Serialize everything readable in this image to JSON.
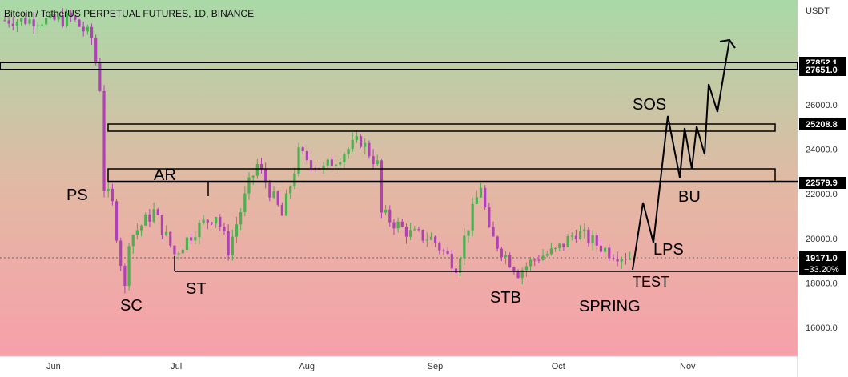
{
  "header": {
    "title": "Bitcoin / TetherUS PERPETUAL FUTURES, 1D, BINANCE",
    "currency": "USDT"
  },
  "colors": {
    "bg_top": "#a8d8a8",
    "bg_bottom": "#f4a0a8",
    "candle_up": "#4caf50",
    "candle_down": "#b040b8",
    "price_tag_bg": "#000000",
    "line": "#000000"
  },
  "annotations": {
    "ps": "PS",
    "ar": "AR",
    "sc": "SC",
    "st": "ST",
    "stb": "STB",
    "spring": "SPRING",
    "test": "TEST",
    "lps": "LPS",
    "sos": "SOS",
    "bu": "BU"
  },
  "price_tags": {
    "t1": "27852.1",
    "t2": "27651.0",
    "t3": "25208.8",
    "t4": "22579.9",
    "current": "19171.0",
    "change": "−33.20%"
  },
  "chart_data": {
    "type": "line",
    "title": "Bitcoin / TetherUS PERPETUAL FUTURES, 1D, BINANCE",
    "xlabel": "",
    "ylabel": "USDT",
    "ylim": [
      14800,
      29200
    ],
    "grid": false,
    "y_ticks": [
      "16000.0",
      "18000.0",
      "20000.0",
      "22000.0",
      "24000.0",
      "26000.0"
    ],
    "x_ticks": [
      "Jun",
      "Jul",
      "Aug",
      "Sep",
      "Oct",
      "Nov"
    ],
    "horizontal_levels": [
      27852.1,
      27651.0,
      25208.8,
      22579.9,
      18450
    ],
    "zones": [
      {
        "name": "resistance",
        "low": 24900,
        "high": 25208.8
      },
      {
        "name": "AR zone",
        "low": 22579.9,
        "high": 23100
      }
    ],
    "candles_approx": [
      {
        "date": "2022-06-01",
        "close": 29800
      },
      {
        "date": "2022-06-05",
        "close": 29900
      },
      {
        "date": "2022-06-10",
        "close": 29000
      },
      {
        "date": "2022-06-12",
        "close": 26800
      },
      {
        "date": "2022-06-13",
        "close": 22300
      },
      {
        "date": "2022-06-15",
        "close": 21500
      },
      {
        "date": "2022-06-18",
        "close": 17700
      },
      {
        "date": "2022-06-19",
        "close": 20000
      },
      {
        "date": "2022-06-25",
        "close": 21200
      },
      {
        "date": "2022-06-30",
        "close": 19300
      },
      {
        "date": "2022-07-05",
        "close": 20400
      },
      {
        "date": "2022-07-10",
        "close": 21100
      },
      {
        "date": "2022-07-13",
        "close": 19500
      },
      {
        "date": "2022-07-18",
        "close": 22400
      },
      {
        "date": "2022-07-20",
        "close": 23300
      },
      {
        "date": "2022-07-26",
        "close": 21000
      },
      {
        "date": "2022-07-30",
        "close": 23800
      },
      {
        "date": "2022-08-05",
        "close": 23100
      },
      {
        "date": "2022-08-10",
        "close": 23900
      },
      {
        "date": "2022-08-14",
        "close": 24400
      },
      {
        "date": "2022-08-18",
        "close": 23300
      },
      {
        "date": "2022-08-19",
        "close": 21100
      },
      {
        "date": "2022-08-26",
        "close": 20200
      },
      {
        "date": "2022-08-31",
        "close": 20000
      },
      {
        "date": "2022-09-06",
        "close": 18800
      },
      {
        "date": "2022-09-12",
        "close": 22400
      },
      {
        "date": "2022-09-14",
        "close": 20200
      },
      {
        "date": "2022-09-21",
        "close": 18500
      },
      {
        "date": "2022-09-26",
        "close": 19200
      },
      {
        "date": "2022-09-30",
        "close": 19400
      },
      {
        "date": "2022-10-05",
        "close": 20300
      },
      {
        "date": "2022-10-13",
        "close": 19400
      },
      {
        "date": "2022-10-20",
        "close": 19100
      }
    ],
    "projection_path": [
      {
        "date": "2022-10-22",
        "price": 18450
      },
      {
        "date": "2022-10-24",
        "price": 21700
      },
      {
        "date": "2022-10-26",
        "price": 19800
      },
      {
        "date": "2022-11-02",
        "price": 25200
      },
      {
        "date": "2022-11-04",
        "price": 22700
      },
      {
        "date": "2022-11-05",
        "price": 25000
      },
      {
        "date": "2022-11-07",
        "price": 23100
      },
      {
        "date": "2022-11-08",
        "price": 25100
      },
      {
        "date": "2022-11-10",
        "price": 23800
      },
      {
        "date": "2022-11-11",
        "price": 26900
      },
      {
        "date": "2022-11-13",
        "price": 25800
      },
      {
        "date": "2022-11-17",
        "price": 29200
      }
    ]
  }
}
